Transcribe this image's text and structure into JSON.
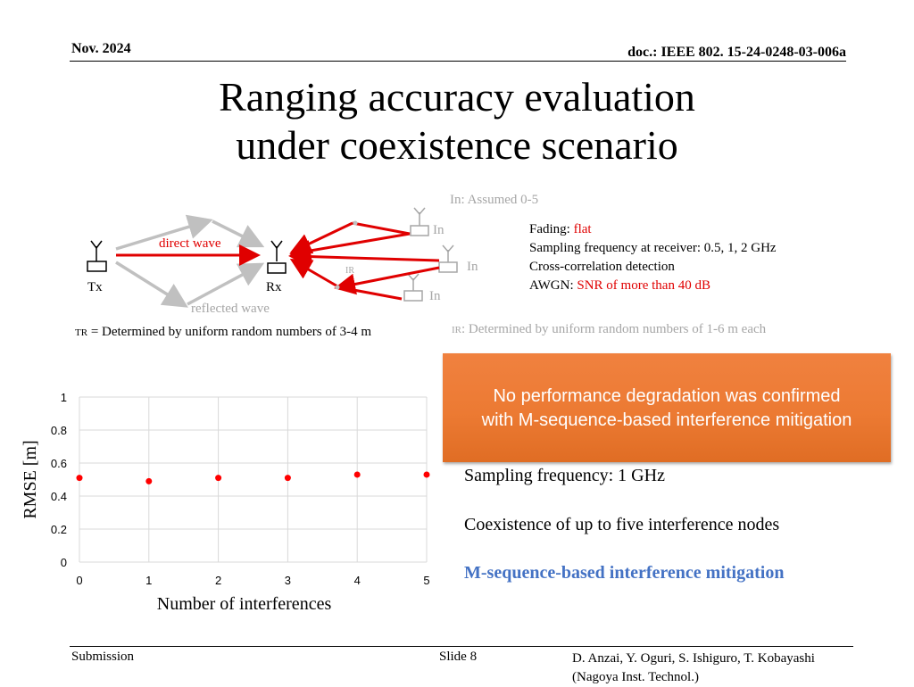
{
  "header": {
    "date": "Nov. 2024",
    "doc": "doc.: IEEE 802. 15-24-0248-03-006a"
  },
  "title": {
    "line1": "Ranging accuracy evaluation",
    "line2": "under coexistence scenario"
  },
  "diagram": {
    "in_assumed_prefix": "In",
    "in_assumed": ": Assumed 0-5",
    "direct_wave": "direct wave",
    "reflected_wave": "reflected wave",
    "tx": "Tx",
    "rx": "Rx",
    "ir": "IR",
    "in_label": "In",
    "tr_label": "TR",
    "tr_text": " = Determined by uniform random numbers of 3-4 m",
    "ir_label": "IR",
    "ir_text": ": Determined by uniform random numbers of 1-6 m each"
  },
  "conditions": {
    "fading_label": "Fading: ",
    "fading_value": "flat",
    "sampling": "Sampling frequency at receiver: 0.5, 1, 2 GHz",
    "detection": "Cross-correlation detection",
    "awgn_label": "AWGN: ",
    "awgn_value": "SNR of more than 40 dB"
  },
  "banner": {
    "line1": "No performance degradation was confirmed",
    "line2": "with M-sequence-based interference mitigation"
  },
  "notes": {
    "sampling": "Sampling frequency: 1 GHz",
    "coexistence": "Coexistence of up to five interference nodes",
    "mitigation": "M-sequence-based interference mitigation"
  },
  "footer": {
    "submission": "Submission",
    "slide": "Slide 8",
    "authors_line1": "D. Anzai, Y. Oguri, S. Ishiguro,  T. Kobayashi",
    "authors_line2": "(Nagoya Inst. Technol.)"
  },
  "colors": {
    "series": "#ff0000",
    "arrow_red": "#e00000",
    "arrow_gray": "#c0c0c0",
    "banner": "#ec7a33"
  },
  "chart_data": {
    "type": "scatter",
    "title": "",
    "xlabel": "Number of interferences",
    "ylabel": "RMSE [m]",
    "xlim": [
      0,
      5
    ],
    "ylim": [
      0,
      1
    ],
    "xticks": [
      "0",
      "1",
      "2",
      "3",
      "4",
      "5"
    ],
    "yticks": [
      "0",
      "0.2",
      "0.4",
      "0.6",
      "0.8",
      "1"
    ],
    "grid": true,
    "legend": "none",
    "series": [
      {
        "x": [
          0,
          1,
          2,
          3,
          4,
          5
        ],
        "y": [
          0.51,
          0.49,
          0.51,
          0.51,
          0.53,
          0.53
        ]
      }
    ]
  }
}
